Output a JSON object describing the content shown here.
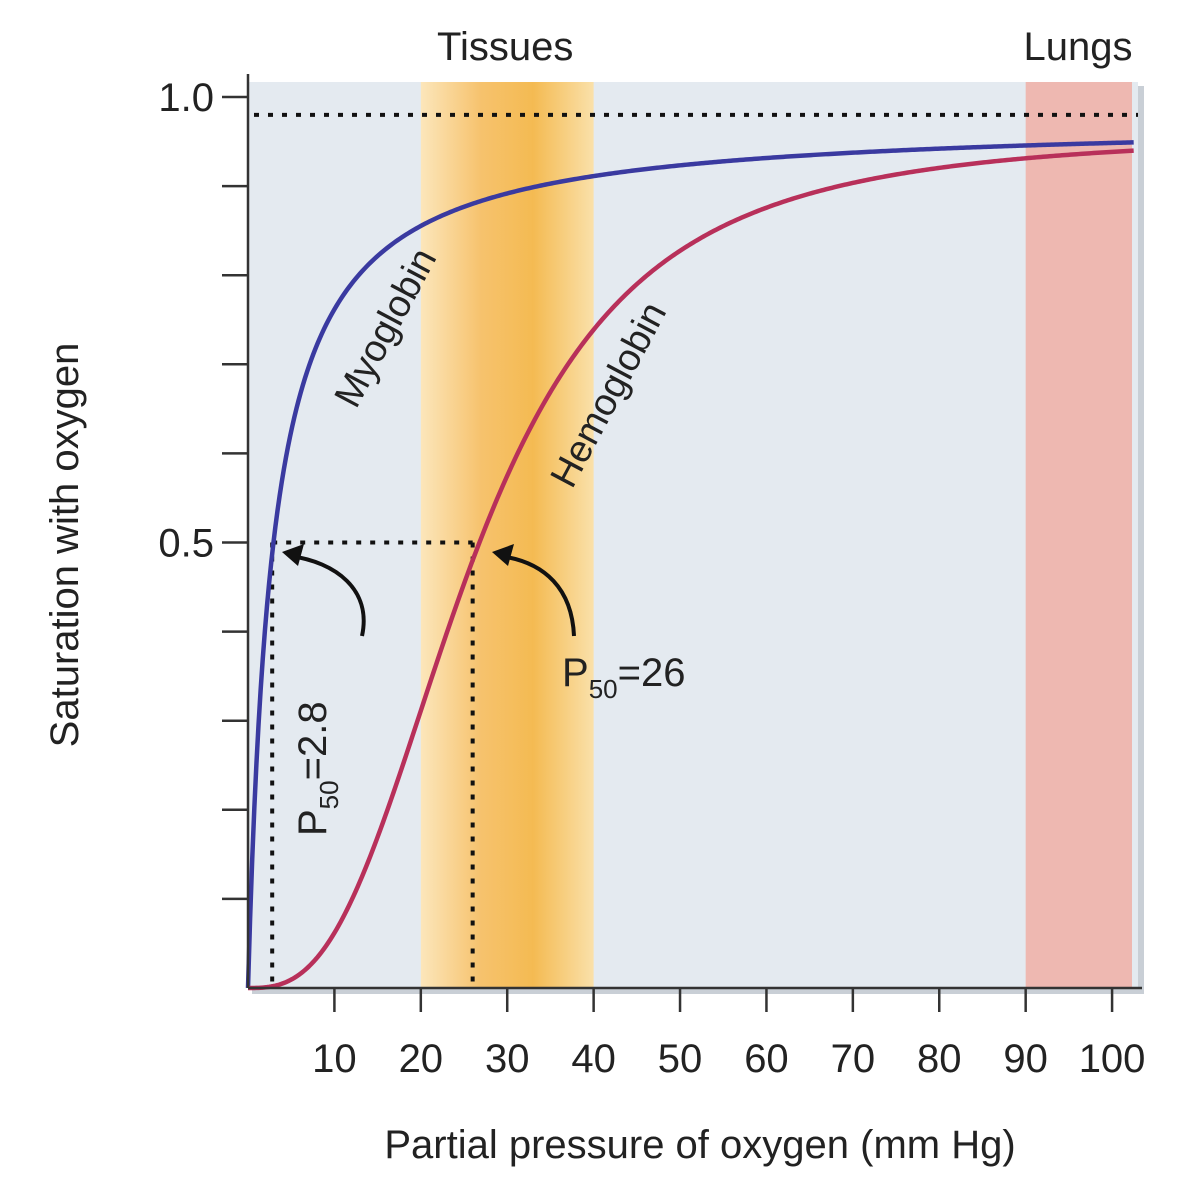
{
  "chart_data": {
    "type": "line",
    "title": "",
    "xlabel": "Partial pressure of oxygen (mm Hg)",
    "ylabel": "Saturation with oxygen",
    "xlim": [
      0,
      103
    ],
    "ylim": [
      0,
      1.0
    ],
    "x_ticks": [
      10,
      20,
      30,
      40,
      50,
      60,
      70,
      80,
      90,
      100
    ],
    "y_tick_labels": [
      {
        "value": 0.5,
        "label": "0.5"
      },
      {
        "value": 1.0,
        "label": "1.0"
      }
    ],
    "y_minor_ticks": [
      0.1,
      0.2,
      0.3,
      0.4,
      0.6,
      0.7,
      0.8,
      0.9
    ],
    "grid": false,
    "regions": [
      {
        "label": "Tissues",
        "x_range": [
          20,
          40
        ],
        "color": "#f5b84a"
      },
      {
        "label": "Lungs",
        "x_range": [
          90,
          103
        ],
        "color": "#eeb3aa"
      }
    ],
    "series": [
      {
        "name": "Myoglobin",
        "color": "#3a3aa0",
        "model": "hyperbolic",
        "p50": 2.8,
        "n": 1,
        "max_saturation": 0.975,
        "x": [
          0,
          2.8,
          5,
          10,
          20,
          30,
          40,
          60,
          80,
          100
        ],
        "y": [
          0,
          0.5,
          0.62,
          0.77,
          0.86,
          0.91,
          0.94,
          0.96,
          0.97,
          0.97
        ]
      },
      {
        "name": "Hemoglobin",
        "color": "#b8305a",
        "model": "hill",
        "p50": 26,
        "n": 2.8,
        "max_saturation": 0.96,
        "x": [
          0,
          10,
          20,
          26,
          30,
          40,
          60,
          80,
          100
        ],
        "y": [
          0,
          0.07,
          0.32,
          0.5,
          0.6,
          0.77,
          0.9,
          0.94,
          0.96
        ]
      }
    ],
    "reference_line": {
      "y": 0.98,
      "style": "dotted"
    },
    "annotations": [
      {
        "main": "P",
        "sub": "50",
        "rest": "=2.8",
        "series": "Myoglobin",
        "x": 2.8,
        "y": 0.5
      },
      {
        "main": "P",
        "sub": "50",
        "rest": "=26",
        "series": "Hemoglobin",
        "x": 26,
        "y": 0.5
      }
    ]
  }
}
